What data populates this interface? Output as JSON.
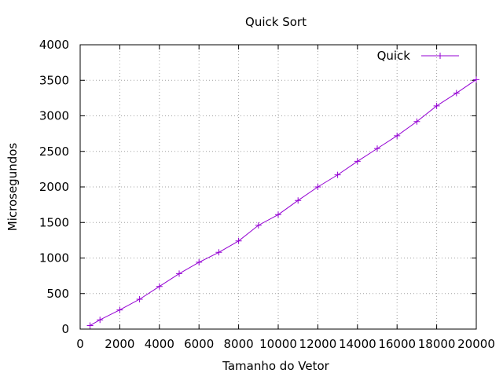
{
  "chart_data": {
    "type": "line",
    "title": "Quick Sort",
    "xlabel": "Tamanho do Vetor",
    "ylabel": "Microsegundos",
    "xlim": [
      0,
      20000
    ],
    "ylim": [
      0,
      4000
    ],
    "xticks": [
      0,
      2000,
      4000,
      6000,
      8000,
      10000,
      12000,
      14000,
      16000,
      18000,
      20000
    ],
    "yticks": [
      0,
      500,
      1000,
      1500,
      2000,
      2500,
      3000,
      3500,
      4000
    ],
    "grid": true,
    "legend_position": "top-right",
    "series": [
      {
        "name": "Quick",
        "color": "#9400d3",
        "marker": "plus",
        "x": [
          500,
          1000,
          2000,
          3000,
          4000,
          5000,
          6000,
          7000,
          8000,
          9000,
          10000,
          11000,
          12000,
          13000,
          14000,
          15000,
          16000,
          17000,
          18000,
          19000,
          20000
        ],
        "y": [
          50,
          130,
          270,
          420,
          600,
          780,
          940,
          1080,
          1240,
          1460,
          1610,
          1810,
          2000,
          2170,
          2360,
          2540,
          2720,
          2920,
          3140,
          3320,
          3510
        ]
      }
    ]
  }
}
